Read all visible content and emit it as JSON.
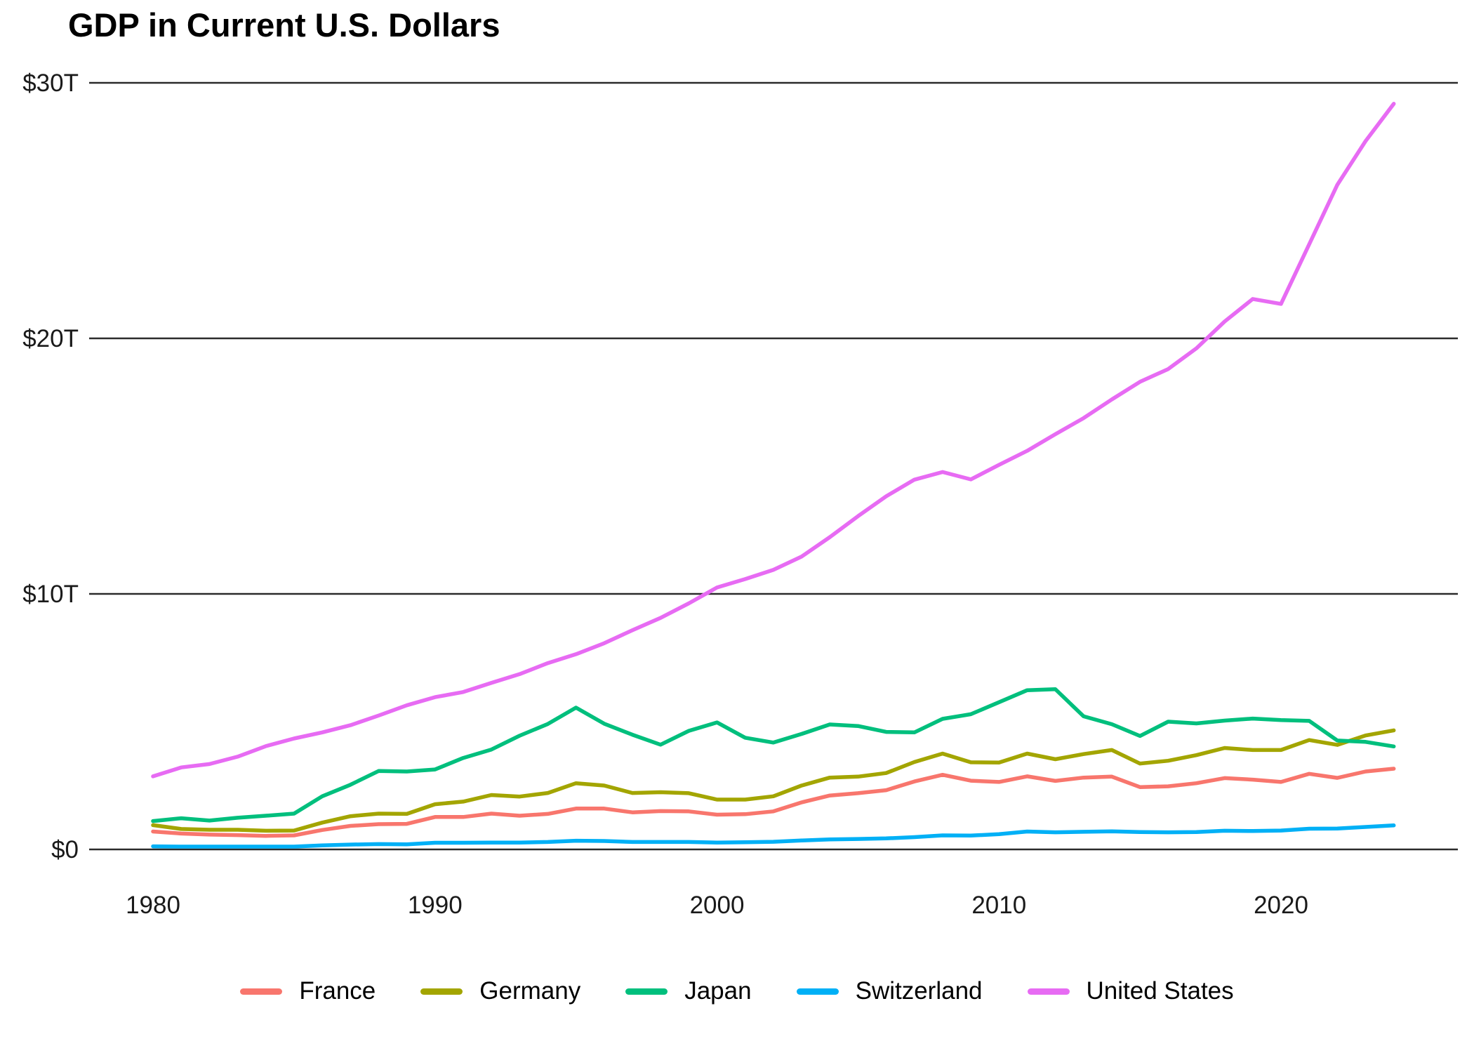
{
  "chart_data": {
    "type": "line",
    "title": "GDP in Current U.S. Dollars",
    "unit": "trillions of current U.S. dollars",
    "grid": "horizontal",
    "legend_position": "bottom",
    "ylim": [
      0,
      30
    ],
    "xlim": [
      1980,
      2024
    ],
    "y_ticks": [
      {
        "value": 0,
        "label": "$0"
      },
      {
        "value": 10,
        "label": "$10T"
      },
      {
        "value": 20,
        "label": "$20T"
      },
      {
        "value": 30,
        "label": "$30T"
      }
    ],
    "x_ticks": [
      {
        "value": 1980,
        "label": "1980"
      },
      {
        "value": 1990,
        "label": "1990"
      },
      {
        "value": 2000,
        "label": "2000"
      },
      {
        "value": 2010,
        "label": "2010"
      },
      {
        "value": 2020,
        "label": "2020"
      }
    ],
    "x": [
      1980,
      1981,
      1982,
      1983,
      1984,
      1985,
      1986,
      1987,
      1988,
      1989,
      1990,
      1991,
      1992,
      1993,
      1994,
      1995,
      1996,
      1997,
      1998,
      1999,
      2000,
      2001,
      2002,
      2003,
      2004,
      2005,
      2006,
      2007,
      2008,
      2009,
      2010,
      2011,
      2012,
      2013,
      2014,
      2015,
      2016,
      2017,
      2018,
      2019,
      2020,
      2021,
      2022,
      2023,
      2024
    ],
    "series": [
      {
        "name": "France",
        "color": "#F8766D",
        "values": [
          0.7,
          0.62,
          0.58,
          0.56,
          0.53,
          0.55,
          0.76,
          0.92,
          0.99,
          1.0,
          1.27,
          1.27,
          1.4,
          1.32,
          1.39,
          1.6,
          1.6,
          1.45,
          1.5,
          1.49,
          1.36,
          1.38,
          1.49,
          1.84,
          2.11,
          2.2,
          2.32,
          2.66,
          2.92,
          2.69,
          2.64,
          2.86,
          2.68,
          2.81,
          2.85,
          2.44,
          2.47,
          2.59,
          2.79,
          2.73,
          2.64,
          2.96,
          2.8,
          3.05,
          3.16
        ]
      },
      {
        "name": "Germany",
        "color": "#A3A500",
        "values": [
          0.95,
          0.8,
          0.77,
          0.77,
          0.73,
          0.74,
          1.05,
          1.3,
          1.4,
          1.39,
          1.77,
          1.87,
          2.13,
          2.07,
          2.21,
          2.59,
          2.5,
          2.21,
          2.24,
          2.2,
          1.95,
          1.95,
          2.08,
          2.5,
          2.81,
          2.85,
          2.99,
          3.42,
          3.75,
          3.41,
          3.4,
          3.75,
          3.53,
          3.73,
          3.89,
          3.36,
          3.47,
          3.69,
          3.97,
          3.89,
          3.89,
          4.28,
          4.09,
          4.46,
          4.66
        ]
      },
      {
        "name": "Japan",
        "color": "#00BF7D",
        "values": [
          1.11,
          1.22,
          1.13,
          1.24,
          1.32,
          1.4,
          2.08,
          2.53,
          3.07,
          3.05,
          3.13,
          3.58,
          3.91,
          4.45,
          4.91,
          5.55,
          4.92,
          4.49,
          4.1,
          4.64,
          4.97,
          4.37,
          4.18,
          4.52,
          4.89,
          4.83,
          4.6,
          4.58,
          5.11,
          5.29,
          5.76,
          6.23,
          6.27,
          5.21,
          4.9,
          4.44,
          5.0,
          4.93,
          5.04,
          5.12,
          5.06,
          5.03,
          4.26,
          4.21,
          4.03
        ]
      },
      {
        "name": "Switzerland",
        "color": "#00B0F6",
        "values": [
          0.12,
          0.11,
          0.11,
          0.11,
          0.11,
          0.11,
          0.16,
          0.19,
          0.21,
          0.2,
          0.26,
          0.26,
          0.27,
          0.27,
          0.29,
          0.34,
          0.33,
          0.29,
          0.29,
          0.29,
          0.27,
          0.28,
          0.3,
          0.35,
          0.39,
          0.41,
          0.43,
          0.48,
          0.55,
          0.54,
          0.6,
          0.7,
          0.67,
          0.69,
          0.71,
          0.68,
          0.67,
          0.68,
          0.73,
          0.72,
          0.74,
          0.81,
          0.82,
          0.88,
          0.94
        ]
      },
      {
        "name": "United States",
        "color": "#E76BF3",
        "values": [
          2.86,
          3.21,
          3.34,
          3.63,
          4.04,
          4.34,
          4.58,
          4.86,
          5.24,
          5.64,
          5.96,
          6.16,
          6.52,
          6.86,
          7.29,
          7.64,
          8.07,
          8.58,
          9.06,
          9.63,
          10.25,
          10.58,
          10.94,
          11.46,
          12.22,
          13.04,
          13.82,
          14.47,
          14.77,
          14.48,
          15.05,
          15.6,
          16.25,
          16.88,
          17.61,
          18.3,
          18.8,
          19.61,
          20.66,
          21.54,
          21.35,
          23.68,
          26.01,
          27.72,
          29.18
        ]
      }
    ]
  }
}
